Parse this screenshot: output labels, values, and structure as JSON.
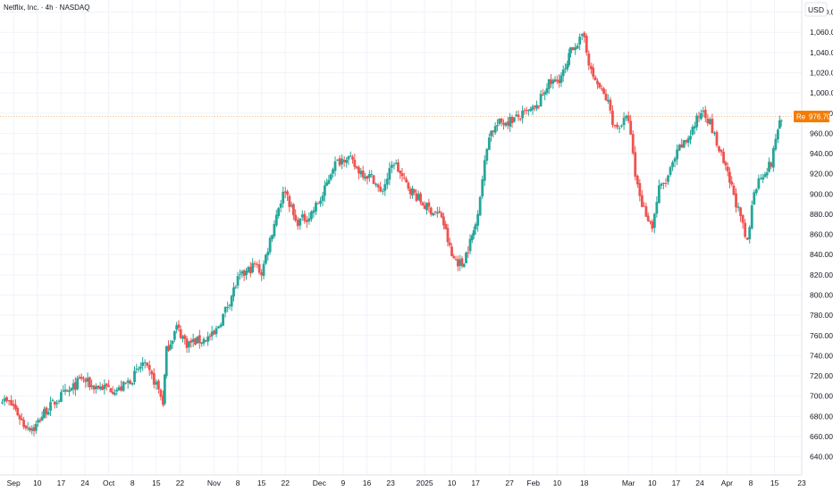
{
  "header": {
    "symbol_title": "Netflix, Inc. · 4h · NASDAQ",
    "currency_button": "USD"
  },
  "price_label": {
    "prefix": "Re",
    "value": "976.70"
  },
  "colors": {
    "up": "#26a69a",
    "down": "#ef5350",
    "grid": "#f0f3fa",
    "axis_border": "#e0e3eb",
    "label_bg": "#f57c00"
  },
  "chart_data": {
    "type": "candlestick",
    "title": "Netflix, Inc. · 4h · NASDAQ",
    "currency": "USD",
    "current_price": 976.7,
    "y_range": [
      622,
      1092
    ],
    "x_range": [
      "2024-08-30",
      "2025-04-23"
    ],
    "y_ticks": [
      640,
      660,
      680,
      700,
      720,
      740,
      760,
      780,
      800,
      820,
      840,
      860,
      880,
      900,
      920,
      940,
      960,
      980,
      1000,
      1020,
      1040,
      1060,
      1080
    ],
    "y_tick_labels": [
      "640.00",
      "660.00",
      "680.00",
      "700.00",
      "720.00",
      "740.00",
      "760.00",
      "780.00",
      "800.00",
      "820.00",
      "840.00",
      "860.00",
      "880.00",
      "900.00",
      "920.00",
      "940.00",
      "960.00",
      "980.00",
      "1,000.00",
      "1,020.00",
      "1,040.00",
      "1,060.00",
      "1,080.00"
    ],
    "x_ticks": [
      {
        "label": "Sep",
        "date": "2024-09-03"
      },
      {
        "label": "10",
        "date": "2024-09-10"
      },
      {
        "label": "17",
        "date": "2024-09-17"
      },
      {
        "label": "24",
        "date": "2024-09-24"
      },
      {
        "label": "Oct",
        "date": "2024-10-01"
      },
      {
        "label": "8",
        "date": "2024-10-08"
      },
      {
        "label": "15",
        "date": "2024-10-15"
      },
      {
        "label": "22",
        "date": "2024-10-22"
      },
      {
        "label": "Nov",
        "date": "2024-11-01"
      },
      {
        "label": "8",
        "date": "2024-11-08"
      },
      {
        "label": "15",
        "date": "2024-11-15"
      },
      {
        "label": "22",
        "date": "2024-11-22"
      },
      {
        "label": "Dec",
        "date": "2024-12-02"
      },
      {
        "label": "9",
        "date": "2024-12-09"
      },
      {
        "label": "16",
        "date": "2024-12-16"
      },
      {
        "label": "23",
        "date": "2024-12-23"
      },
      {
        "label": "2025",
        "date": "2025-01-02"
      },
      {
        "label": "10",
        "date": "2025-01-10"
      },
      {
        "label": "17",
        "date": "2025-01-17"
      },
      {
        "label": "27",
        "date": "2025-01-27"
      },
      {
        "label": "Feb",
        "date": "2025-02-03"
      },
      {
        "label": "10",
        "date": "2025-02-10"
      },
      {
        "label": "18",
        "date": "2025-02-18"
      },
      {
        "label": "Mar",
        "date": "2025-03-03"
      },
      {
        "label": "10",
        "date": "2025-03-10"
      },
      {
        "label": "17",
        "date": "2025-03-17"
      },
      {
        "label": "24",
        "date": "2025-03-24"
      },
      {
        "label": "Apr",
        "date": "2025-04-01"
      },
      {
        "label": "8",
        "date": "2025-04-08"
      },
      {
        "label": "15",
        "date": "2025-04-15"
      },
      {
        "label": "23",
        "date": "2025-04-23"
      }
    ],
    "path_keypoints": [
      {
        "date": "2024-08-30",
        "price": 698
      },
      {
        "date": "2024-09-03",
        "price": 690
      },
      {
        "date": "2024-09-06",
        "price": 672
      },
      {
        "date": "2024-09-09",
        "price": 668
      },
      {
        "date": "2024-09-12",
        "price": 684
      },
      {
        "date": "2024-09-17",
        "price": 700
      },
      {
        "date": "2024-09-20",
        "price": 706
      },
      {
        "date": "2024-09-23",
        "price": 718
      },
      {
        "date": "2024-09-26",
        "price": 710
      },
      {
        "date": "2024-10-01",
        "price": 708
      },
      {
        "date": "2024-10-04",
        "price": 706
      },
      {
        "date": "2024-10-08",
        "price": 718
      },
      {
        "date": "2024-10-11",
        "price": 732
      },
      {
        "date": "2024-10-15",
        "price": 712
      },
      {
        "date": "2024-10-17",
        "price": 694
      },
      {
        "date": "2024-10-18",
        "price": 745
      },
      {
        "date": "2024-10-21",
        "price": 768
      },
      {
        "date": "2024-10-24",
        "price": 752
      },
      {
        "date": "2024-10-29",
        "price": 756
      },
      {
        "date": "2024-11-01",
        "price": 760
      },
      {
        "date": "2024-11-05",
        "price": 790
      },
      {
        "date": "2024-11-08",
        "price": 815
      },
      {
        "date": "2024-11-13",
        "price": 830
      },
      {
        "date": "2024-11-15",
        "price": 822
      },
      {
        "date": "2024-11-20",
        "price": 888
      },
      {
        "date": "2024-11-22",
        "price": 905
      },
      {
        "date": "2024-11-25",
        "price": 872
      },
      {
        "date": "2024-11-29",
        "price": 878
      },
      {
        "date": "2024-12-03",
        "price": 898
      },
      {
        "date": "2024-12-06",
        "price": 928
      },
      {
        "date": "2024-12-10",
        "price": 938
      },
      {
        "date": "2024-12-13",
        "price": 925
      },
      {
        "date": "2024-12-18",
        "price": 915
      },
      {
        "date": "2024-12-20",
        "price": 900
      },
      {
        "date": "2024-12-24",
        "price": 932
      },
      {
        "date": "2024-12-27",
        "price": 912
      },
      {
        "date": "2025-01-02",
        "price": 888
      },
      {
        "date": "2025-01-07",
        "price": 878
      },
      {
        "date": "2025-01-10",
        "price": 838
      },
      {
        "date": "2025-01-13",
        "price": 830
      },
      {
        "date": "2025-01-16",
        "price": 858
      },
      {
        "date": "2025-01-17",
        "price": 870
      },
      {
        "date": "2025-01-21",
        "price": 960
      },
      {
        "date": "2025-01-24",
        "price": 970
      },
      {
        "date": "2025-01-29",
        "price": 975
      },
      {
        "date": "2025-02-04",
        "price": 985
      },
      {
        "date": "2025-02-07",
        "price": 1008
      },
      {
        "date": "2025-02-10",
        "price": 1012
      },
      {
        "date": "2025-02-13",
        "price": 1025
      },
      {
        "date": "2025-02-14",
        "price": 1045
      },
      {
        "date": "2025-02-18",
        "price": 1055
      },
      {
        "date": "2025-02-20",
        "price": 1020
      },
      {
        "date": "2025-02-25",
        "price": 990
      },
      {
        "date": "2025-02-27",
        "price": 965
      },
      {
        "date": "2025-03-03",
        "price": 975
      },
      {
        "date": "2025-03-05",
        "price": 918
      },
      {
        "date": "2025-03-07",
        "price": 890
      },
      {
        "date": "2025-03-10",
        "price": 868
      },
      {
        "date": "2025-03-12",
        "price": 905
      },
      {
        "date": "2025-03-14",
        "price": 912
      },
      {
        "date": "2025-03-18",
        "price": 945
      },
      {
        "date": "2025-03-20",
        "price": 952
      },
      {
        "date": "2025-03-25",
        "price": 985
      },
      {
        "date": "2025-03-27",
        "price": 970
      },
      {
        "date": "2025-03-31",
        "price": 930
      },
      {
        "date": "2025-04-03",
        "price": 900
      },
      {
        "date": "2025-04-07",
        "price": 850
      },
      {
        "date": "2025-04-09",
        "price": 905
      },
      {
        "date": "2025-04-11",
        "price": 918
      },
      {
        "date": "2025-04-14",
        "price": 930
      },
      {
        "date": "2025-04-16",
        "price": 966
      },
      {
        "date": "2025-04-17",
        "price": 976.7
      }
    ]
  }
}
